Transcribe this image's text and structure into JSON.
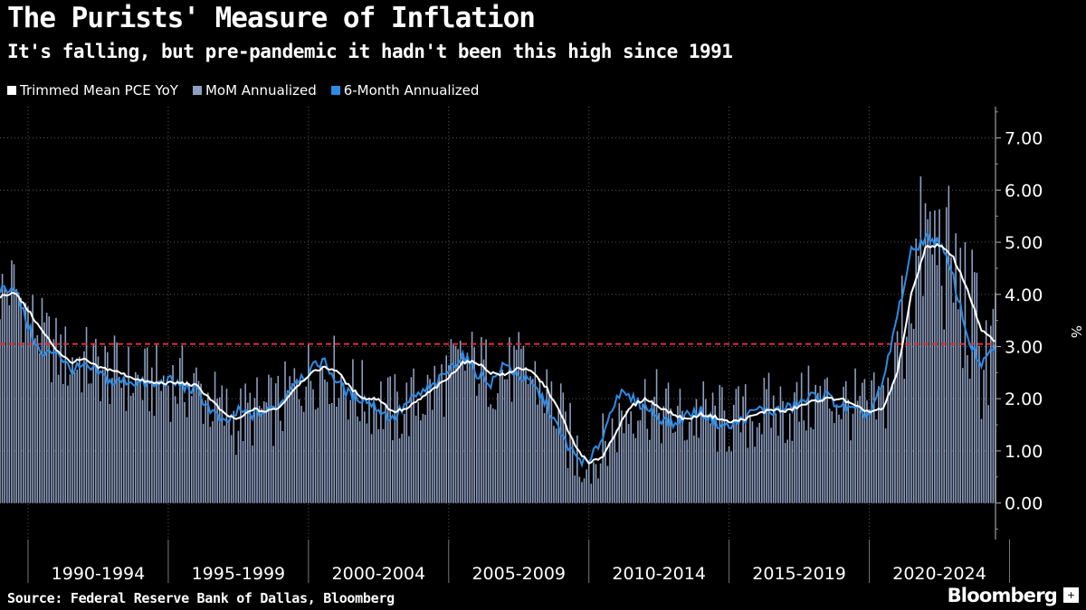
{
  "header": {
    "title": "The Purists' Measure of Inflation",
    "subtitle": "It's falling, but pre-pandemic it hadn't been this high since 1991"
  },
  "legend": [
    {
      "label": "Trimmed Mean PCE YoY",
      "color": "#ffffff"
    },
    {
      "label": "MoM Annualized",
      "color": "#8d9ec0"
    },
    {
      "label": "6-Month Annualized",
      "color": "#2b8ce6"
    }
  ],
  "footer": {
    "source": "Source: Federal Reserve Bank of Dallas, Bloomberg",
    "brand": "Bloomberg",
    "brand_icon": "plus-icon"
  },
  "chart_data": {
    "type": "bar",
    "title": "The Purists' Measure of Inflation",
    "xlabel": "",
    "ylabel": "%",
    "ylim": [
      -0.7,
      7.6
    ],
    "yticks": [
      0,
      1,
      2,
      3,
      4,
      5,
      6,
      7
    ],
    "ytick_labels": [
      "0.00",
      "1.00",
      "2.00",
      "3.00",
      "4.00",
      "5.00",
      "6.00",
      "7.00"
    ],
    "x_start_year": 1989,
    "x_end_year": 2024.5,
    "period_labels": [
      "1990-1994",
      "1995-1999",
      "2000-2004",
      "2005-2009",
      "2010-2014",
      "2015-2019",
      "2020-2024"
    ],
    "reference_line": {
      "value": 3.05,
      "color": "#d8303a",
      "style": "dashed"
    },
    "colors": {
      "bars": "#8d9ec0",
      "yoy": "#ffffff",
      "six_month": "#2b8ce6"
    },
    "anchors_years": [
      1989.0,
      1989.5,
      1990.0,
      1990.5,
      1991.0,
      1991.5,
      1992.0,
      1992.5,
      1993.0,
      1993.5,
      1994.0,
      1994.5,
      1995.0,
      1995.5,
      1996.0,
      1996.5,
      1997.0,
      1997.5,
      1998.0,
      1998.5,
      1999.0,
      1999.5,
      2000.0,
      2000.5,
      2001.0,
      2001.5,
      2002.0,
      2002.5,
      2003.0,
      2003.5,
      2004.0,
      2004.5,
      2005.0,
      2005.5,
      2006.0,
      2006.5,
      2007.0,
      2007.5,
      2008.0,
      2008.5,
      2009.0,
      2009.5,
      2010.0,
      2010.5,
      2011.0,
      2011.5,
      2012.0,
      2012.5,
      2013.0,
      2013.5,
      2014.0,
      2014.5,
      2015.0,
      2015.5,
      2016.0,
      2016.5,
      2017.0,
      2017.5,
      2018.0,
      2018.5,
      2019.0,
      2019.5,
      2020.0,
      2020.5,
      2021.0,
      2021.5,
      2022.0,
      2022.5,
      2023.0,
      2023.5,
      2024.0,
      2024.5
    ],
    "series": [
      {
        "name": "Trimmed Mean PCE YoY",
        "kind": "line",
        "values": [
          3.95,
          4.05,
          3.7,
          3.3,
          2.95,
          2.7,
          2.75,
          2.6,
          2.55,
          2.45,
          2.35,
          2.3,
          2.3,
          2.3,
          2.25,
          2.0,
          1.7,
          1.6,
          1.8,
          1.75,
          1.85,
          2.2,
          2.45,
          2.6,
          2.55,
          2.2,
          2.0,
          2.0,
          1.75,
          1.8,
          2.0,
          2.2,
          2.4,
          2.7,
          2.7,
          2.5,
          2.45,
          2.6,
          2.5,
          2.2,
          1.7,
          1.1,
          0.75,
          0.9,
          1.4,
          1.85,
          2.0,
          1.85,
          1.7,
          1.6,
          1.7,
          1.65,
          1.55,
          1.6,
          1.7,
          1.8,
          1.75,
          1.85,
          1.95,
          2.0,
          2.0,
          1.85,
          1.75,
          1.8,
          2.5,
          4.0,
          4.9,
          4.95,
          4.7,
          4.1,
          3.3,
          3.1
        ]
      },
      {
        "name": "6-Month Annualized",
        "kind": "line",
        "values": [
          4.1,
          4.15,
          3.4,
          2.8,
          2.95,
          2.55,
          2.6,
          2.5,
          2.3,
          2.35,
          2.3,
          2.25,
          2.35,
          2.25,
          2.15,
          1.8,
          1.5,
          1.75,
          1.7,
          1.75,
          1.9,
          2.35,
          2.5,
          2.75,
          2.35,
          2.05,
          2.0,
          1.8,
          1.6,
          1.9,
          2.1,
          2.25,
          2.55,
          2.85,
          2.5,
          2.3,
          2.65,
          2.45,
          2.25,
          1.9,
          1.3,
          0.9,
          0.75,
          1.3,
          2.1,
          2.0,
          1.85,
          1.65,
          1.5,
          1.7,
          1.75,
          1.55,
          1.45,
          1.6,
          1.8,
          1.75,
          1.8,
          1.9,
          2.05,
          2.05,
          1.85,
          1.75,
          1.7,
          2.3,
          3.6,
          4.8,
          5.1,
          5.0,
          4.3,
          3.2,
          2.6,
          3.05
        ]
      },
      {
        "name": "MoM Annualized",
        "kind": "bar",
        "values": [
          4.0,
          4.2,
          3.6,
          3.2,
          2.9,
          2.7,
          2.7,
          2.6,
          2.5,
          2.4,
          2.3,
          2.3,
          2.3,
          2.3,
          2.2,
          1.95,
          1.7,
          1.6,
          1.75,
          1.75,
          1.85,
          2.2,
          2.45,
          2.6,
          2.5,
          2.15,
          2.0,
          1.95,
          1.75,
          1.85,
          2.0,
          2.2,
          2.45,
          2.7,
          2.65,
          2.45,
          2.5,
          2.55,
          2.4,
          2.1,
          1.6,
          1.0,
          0.75,
          1.0,
          1.5,
          1.85,
          1.95,
          1.8,
          1.65,
          1.6,
          1.7,
          1.6,
          1.55,
          1.6,
          1.7,
          1.8,
          1.75,
          1.85,
          1.95,
          2.0,
          1.95,
          1.85,
          1.75,
          1.9,
          2.8,
          4.3,
          5.0,
          4.9,
          4.4,
          3.6,
          3.0,
          2.9
        ]
      }
    ]
  }
}
